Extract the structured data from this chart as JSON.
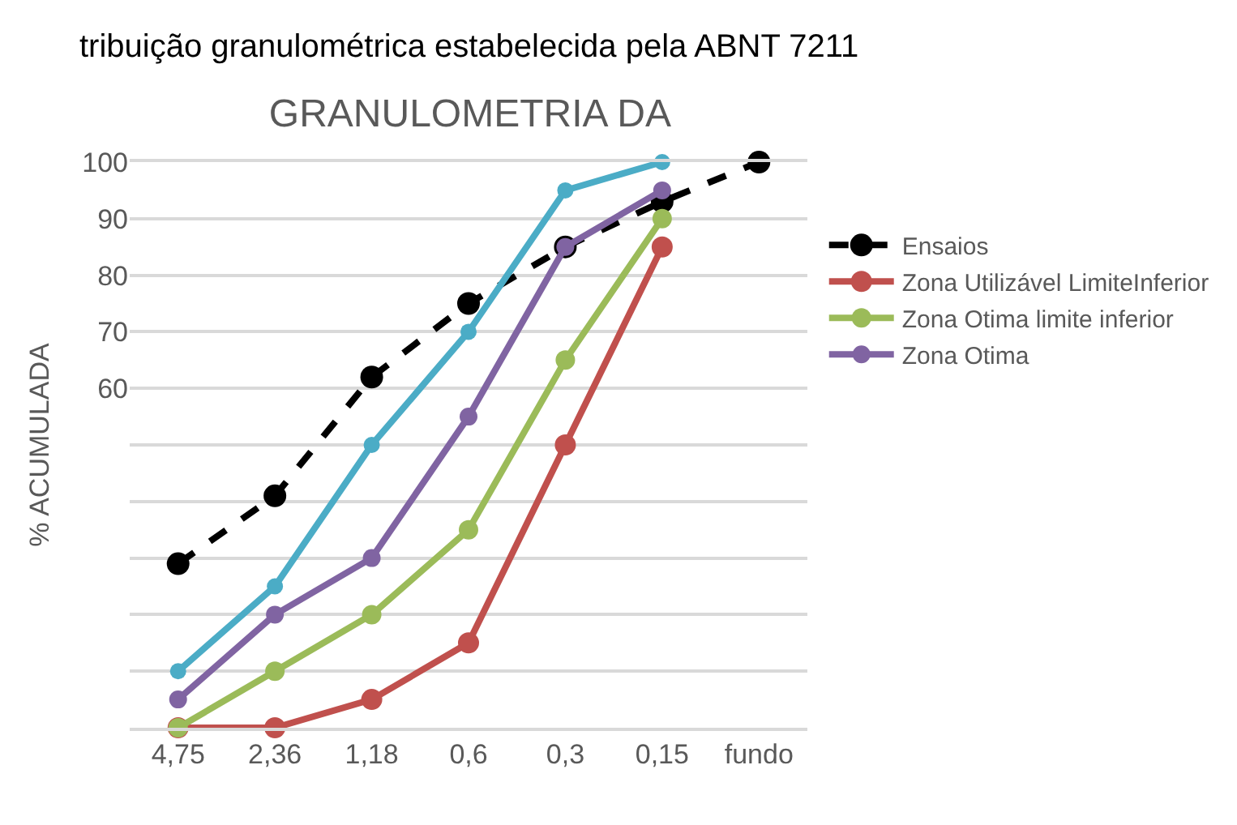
{
  "chart_data": {
    "type": "line",
    "title": "GRANULOMETRIA DA",
    "ylabel": "% ACUMULADA",
    "annotations": [
      "tribuição granulométrica estabelecida pela ABNT 7211"
    ],
    "categories": [
      "4,75",
      "2,36",
      "1,18",
      "0,6",
      "0,3",
      "0,15",
      "fundo"
    ],
    "series": [
      {
        "name": "Ensaios",
        "color": "#000000",
        "line_style": "dashed",
        "values": [
          29,
          41,
          62,
          75,
          85,
          93,
          100
        ]
      },
      {
        "name": "Zona Utilizável LimiteInferior",
        "color": "#c0504d",
        "values": [
          0,
          0,
          5,
          15,
          50,
          85,
          null
        ]
      },
      {
        "name": "Zona Otima limite inferior",
        "color": "#9bbb59",
        "values": [
          0,
          10,
          20,
          35,
          65,
          90,
          null
        ]
      },
      {
        "name": "Zona Otima",
        "color": "#8064a2",
        "values": [
          5,
          20,
          30,
          55,
          85,
          95,
          null
        ]
      },
      {
        "color": "#4bacc6",
        "values": [
          10,
          25,
          50,
          70,
          95,
          100,
          null
        ]
      }
    ],
    "ylim": [
      0,
      100
    ],
    "yticks": [
      100,
      90,
      80,
      70,
      60,
      {
        "value": 50,
        "label": null
      },
      {
        "value": 40,
        "label": null
      },
      {
        "value": 30,
        "label": null
      },
      {
        "value": 20,
        "label": null
      },
      {
        "value": 10,
        "label": null
      },
      {
        "value": 0,
        "label": null
      }
    ],
    "grid": "y",
    "legend": "right",
    "marker": "circle",
    "line_style": "solid"
  }
}
